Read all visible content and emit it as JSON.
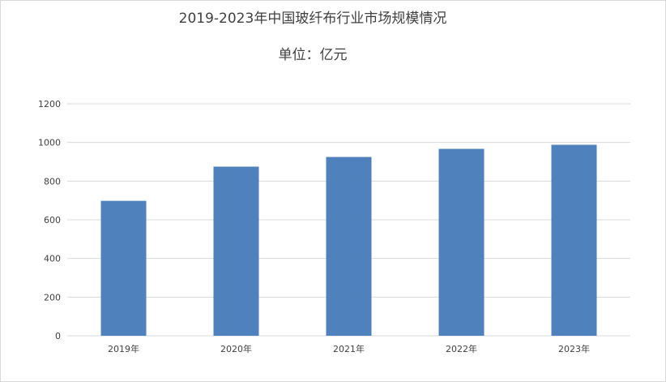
{
  "chart_data": {
    "type": "bar",
    "title": "2019-2023年中国玻纤布行业市场规模情况",
    "subtitle": "单位：亿元",
    "categories": [
      "2019年",
      "2020年",
      "2021年",
      "2022年",
      "2023年"
    ],
    "values": [
      698,
      875,
      925,
      967,
      988
    ],
    "ylim": [
      0,
      1200
    ],
    "yticks": [
      "0",
      "200",
      "400",
      "600",
      "800",
      "1000",
      "1200"
    ],
    "grid": true,
    "legend": "none",
    "bar_color": "#4f81bd",
    "grid_color": "#d9d9d9"
  }
}
